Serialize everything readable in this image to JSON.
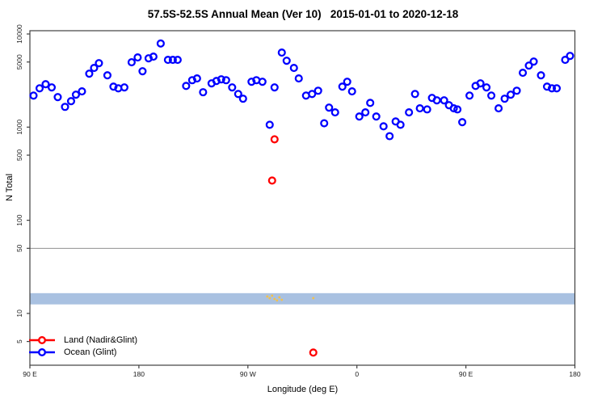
{
  "title": "57.5S-52.5S Annual Mean (Ver 10)   2015-01-01 to 2020-12-18",
  "chart_data": {
    "type": "scatter",
    "title": "57.5S-52.5S Annual Mean (Ver 10)   2015-01-01 to 2020-12-18",
    "xlabel": "Longitude (deg E)",
    "ylabel": "N Total",
    "x_axis": {
      "min": 90,
      "max": 540,
      "ticks": [
        90,
        180,
        270,
        360,
        450,
        540
      ],
      "tick_labels": [
        "90 E",
        "180",
        "90 W",
        "0",
        "90 E",
        "180"
      ]
    },
    "y_axis": {
      "scale": "log",
      "min": 2.78,
      "max": 10840,
      "ticks": [
        5,
        10,
        50,
        100,
        500,
        1000,
        5000,
        10000
      ],
      "tick_labels": [
        "5",
        "10",
        "50",
        "100",
        "500",
        "1000",
        "5000",
        "10000"
      ]
    },
    "grid": false,
    "legend_position": "bottom-left-inside",
    "reference_line": {
      "y": 50,
      "color": "#909090"
    },
    "band": {
      "y_min": 12.5,
      "y_max": 16.5,
      "color": "#a9c1e1"
    },
    "series": [
      {
        "name": "Land (Nadir&Glint)",
        "color": "#ff0000",
        "marker": "open-circle",
        "points": [
          [
            292,
            740
          ],
          [
            290,
            267
          ],
          [
            324,
            3.8
          ]
        ]
      },
      {
        "name": "Ocean (Glint)",
        "color": "#0000ff",
        "marker": "open-circle",
        "points": [
          [
            93,
            2180
          ],
          [
            98,
            2610
          ],
          [
            103,
            2890
          ],
          [
            108,
            2670
          ],
          [
            113,
            2100
          ],
          [
            119,
            1650
          ],
          [
            124,
            1900
          ],
          [
            128,
            2230
          ],
          [
            133,
            2420
          ],
          [
            139,
            3750
          ],
          [
            143,
            4320
          ],
          [
            147,
            4860
          ],
          [
            154,
            3600
          ],
          [
            159,
            2720
          ],
          [
            163,
            2610
          ],
          [
            168,
            2670
          ],
          [
            174,
            4970
          ],
          [
            179,
            5600
          ],
          [
            183,
            3980
          ],
          [
            188,
            5480
          ],
          [
            192,
            5710
          ],
          [
            198,
            7900
          ],
          [
            204,
            5270
          ],
          [
            208,
            5270
          ],
          [
            212,
            5270
          ],
          [
            219,
            2770
          ],
          [
            224,
            3190
          ],
          [
            228,
            3330
          ],
          [
            233,
            2370
          ],
          [
            240,
            2950
          ],
          [
            244,
            3130
          ],
          [
            248,
            3260
          ],
          [
            252,
            3190
          ],
          [
            257,
            2670
          ],
          [
            262,
            2270
          ],
          [
            266,
            2020
          ],
          [
            273,
            3070
          ],
          [
            277,
            3190
          ],
          [
            282,
            3070
          ],
          [
            288,
            1060
          ],
          [
            292,
            2670
          ],
          [
            298,
            6310
          ],
          [
            302,
            5160
          ],
          [
            308,
            4320
          ],
          [
            312,
            3330
          ],
          [
            318,
            2180
          ],
          [
            323,
            2270
          ],
          [
            328,
            2460
          ],
          [
            333,
            1100
          ],
          [
            337,
            1620
          ],
          [
            342,
            1440
          ],
          [
            348,
            2720
          ],
          [
            352,
            3070
          ],
          [
            356,
            2420
          ],
          [
            362,
            1300
          ],
          [
            367,
            1440
          ],
          [
            371,
            1820
          ],
          [
            376,
            1300
          ],
          [
            382,
            1020
          ],
          [
            387,
            800
          ],
          [
            392,
            1150
          ],
          [
            396,
            1060
          ],
          [
            403,
            1440
          ],
          [
            408,
            2270
          ],
          [
            412,
            1590
          ],
          [
            418,
            1550
          ],
          [
            422,
            2060
          ],
          [
            426,
            1940
          ],
          [
            432,
            1940
          ],
          [
            436,
            1720
          ],
          [
            440,
            1590
          ],
          [
            443,
            1550
          ],
          [
            447,
            1130
          ],
          [
            453,
            2180
          ],
          [
            458,
            2770
          ],
          [
            462,
            2950
          ],
          [
            467,
            2670
          ],
          [
            471,
            2180
          ],
          [
            477,
            1590
          ],
          [
            482,
            2020
          ],
          [
            487,
            2230
          ],
          [
            492,
            2460
          ],
          [
            497,
            3830
          ],
          [
            502,
            4580
          ],
          [
            506,
            5060
          ],
          [
            512,
            3600
          ],
          [
            517,
            2720
          ],
          [
            521,
            2610
          ],
          [
            525,
            2610
          ],
          [
            532,
            5270
          ],
          [
            536,
            5820
          ]
        ]
      }
    ],
    "extra_marks": {
      "color": "#f2c14e",
      "marker": "small-dot",
      "points": [
        [
          286,
          15.2
        ],
        [
          288,
          14.6
        ],
        [
          290,
          15.5
        ],
        [
          292,
          14.3
        ],
        [
          294,
          13.8
        ],
        [
          296,
          14.9
        ],
        [
          298,
          14.0
        ],
        [
          324,
          14.6
        ]
      ]
    }
  },
  "legend": {
    "land_label": "Land (Nadir&Glint)",
    "ocean_label": "Ocean (Glint)"
  },
  "colors": {
    "land": "#ff0000",
    "ocean": "#0000ff",
    "axis": "#404040",
    "tick_text": "#1a1a1a"
  }
}
